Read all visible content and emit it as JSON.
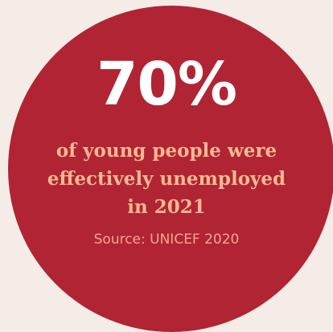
{
  "stat": {
    "value": "70%",
    "caption_lines": [
      "of young people were",
      "effectively unemployed",
      "in 2021"
    ],
    "source": "Source: UNICEF 2020"
  },
  "colors": {
    "background": "#f5ece7",
    "circle": "#b12434",
    "value_text": "#ffffff",
    "caption_text": "#f5b891",
    "source_text": "#f0a98a"
  }
}
